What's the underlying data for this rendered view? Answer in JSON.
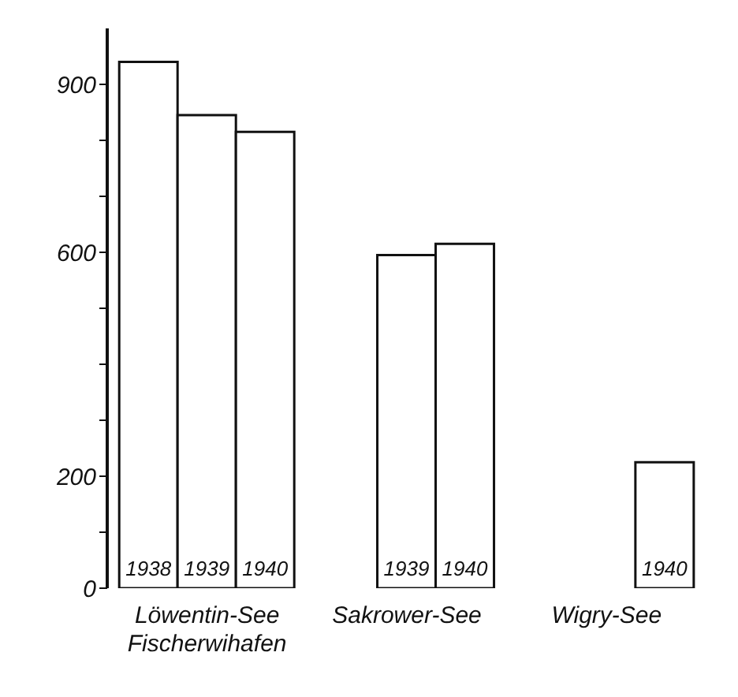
{
  "chart_data": {
    "type": "bar",
    "categories": [
      "Löwentin-See Fischerwihafen",
      "Sakrower-See",
      "Wigry-See"
    ],
    "series": [
      {
        "name": "1938",
        "color": "#ffffff",
        "values": [
          940,
          null,
          null
        ]
      },
      {
        "name": "1939",
        "color": "#ffffff",
        "values": [
          845,
          595,
          null
        ]
      },
      {
        "name": "1940",
        "color": "#ffffff",
        "values": [
          815,
          615,
          225
        ]
      }
    ],
    "ylim": [
      0,
      1000
    ],
    "yticks": [
      0,
      {
        "value": 100,
        "label": null
      },
      200,
      {
        "value": 300,
        "label": null
      },
      {
        "value": 400,
        "label": null
      },
      {
        "value": 500,
        "label": null
      },
      600,
      {
        "value": 700,
        "label": null
      },
      {
        "value": 800,
        "label": null
      },
      900
    ],
    "grid": false,
    "legend": false
  }
}
